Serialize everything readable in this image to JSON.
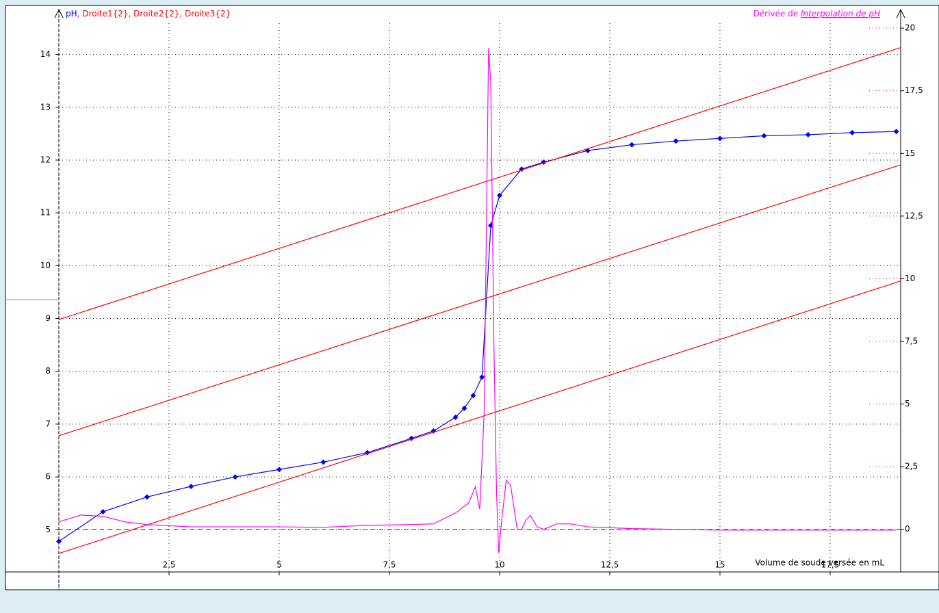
{
  "chart_data": {
    "type": "line",
    "x_label": "Volume de soude versée en mL",
    "legend_separator": ", ",
    "y2_label_prefix": "Dérivée de",
    "xlim": [
      0,
      19.1
    ],
    "xticks": [
      {
        "value": 2.5,
        "label": "2,5"
      },
      5,
      {
        "value": 7.5,
        "label": "7,5"
      },
      10,
      {
        "value": 12.5,
        "label": "12,5"
      },
      15,
      {
        "value": 17.5,
        "label": "17,5"
      }
    ],
    "ylim": [
      4.2,
      14.85
    ],
    "yticks": [
      5,
      6,
      7,
      8,
      9,
      10,
      11,
      12,
      13,
      14
    ],
    "y2lim": [
      -1.7,
      20.74
    ],
    "y2ticks": [
      0,
      {
        "value": 2.5,
        "label": "2,5"
      },
      5,
      {
        "value": 7.5,
        "label": "7,5"
      },
      10,
      {
        "value": 12.5,
        "label": "12,5"
      },
      15,
      {
        "value": 17.5,
        "label": "17,5"
      },
      20
    ],
    "grid": true,
    "series": [
      {
        "name": "pH",
        "color": "#0000ff",
        "markers": true,
        "x": [
          0,
          1,
          2,
          3,
          4,
          5,
          6,
          7,
          8,
          8.5,
          9,
          9.2,
          9.4,
          9.6,
          9.8,
          10,
          10.5,
          11,
          12,
          13,
          14,
          15,
          16,
          17,
          18,
          19
        ],
        "values": [
          4.78,
          5.34,
          5.62,
          5.82,
          6.0,
          6.14,
          6.28,
          6.46,
          6.73,
          6.87,
          7.13,
          7.3,
          7.54,
          7.89,
          10.76,
          11.33,
          11.83,
          11.96,
          12.18,
          12.29,
          12.36,
          12.41,
          12.46,
          12.48,
          12.52,
          12.54
        ]
      },
      {
        "name": "Droite1{2}",
        "color": "#ff0000",
        "x": [
          0,
          19.1
        ],
        "values": [
          8.98,
          14.13
        ]
      },
      {
        "name": "Droite2{2}",
        "color": "#ff0000",
        "x": [
          0,
          19.1
        ],
        "values": [
          6.78,
          11.91
        ]
      },
      {
        "name": "Droite3{2}",
        "color": "#ff0000",
        "x": [
          0,
          19.1
        ],
        "values": [
          4.55,
          9.71
        ]
      },
      {
        "name": "Interpolation de pH",
        "color": "#ff00ff",
        "axis": "y2",
        "x": [
          0,
          0.5,
          1,
          1.5,
          2,
          3,
          5,
          6,
          7,
          8,
          8.5,
          9,
          9.3,
          9.45,
          9.55,
          9.65,
          9.75,
          9.8,
          9.87,
          9.93,
          9.98,
          10.05,
          10.15,
          10.25,
          10.4,
          10.5,
          10.6,
          10.7,
          10.85,
          11,
          11.3,
          11.6,
          12,
          13,
          15,
          19
        ],
        "values": [
          0.3,
          0.57,
          0.52,
          0.3,
          0.19,
          0.1,
          0.1,
          0.08,
          0.16,
          0.19,
          0.22,
          0.65,
          1.06,
          1.7,
          0.8,
          4.7,
          19.2,
          17.8,
          7.5,
          1.5,
          -0.93,
          0.4,
          1.96,
          1.75,
          0,
          0,
          0.38,
          0.55,
          0.1,
          0,
          0.22,
          0.22,
          0.1,
          0.03,
          -0.03,
          -0.03
        ]
      }
    ]
  }
}
